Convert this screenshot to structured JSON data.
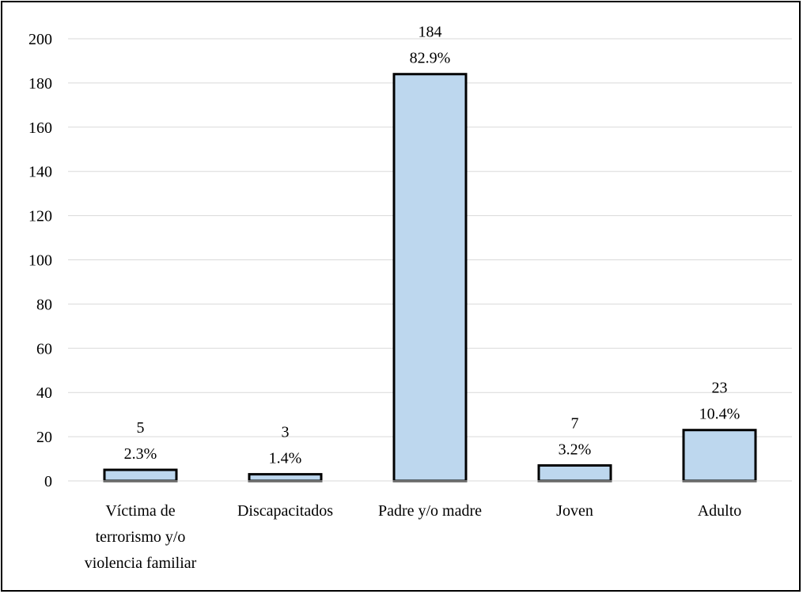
{
  "chart_data": {
    "type": "bar",
    "title": "",
    "xlabel": "",
    "ylabel": "",
    "ylim": [
      0,
      200
    ],
    "y_ticks": [
      "0",
      "20",
      "40",
      "60",
      "80",
      "100",
      "120",
      "140",
      "160",
      "180",
      "200"
    ],
    "grid": true,
    "legend": "none",
    "bar_color": "#bdd7ee",
    "bar_edge_color": "#000000",
    "categories": [
      [
        "Víctima de",
        "terrorismo y/o",
        "violencia familiar"
      ],
      [
        "Discapacitados"
      ],
      [
        "Padre y/o madre"
      ],
      [
        "Joven"
      ],
      [
        "Adulto"
      ]
    ],
    "values": [
      5,
      3,
      184,
      7,
      23
    ],
    "data_labels": [
      "5",
      "3",
      "184",
      "7",
      "23"
    ],
    "percent_labels": [
      "2.3%",
      "1.4%",
      "82.9%",
      "3.2%",
      "10.4%"
    ]
  }
}
